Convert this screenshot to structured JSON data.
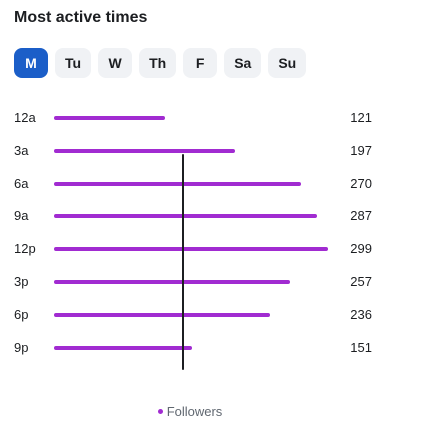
{
  "header": {
    "title": "Most active times"
  },
  "days": [
    {
      "label": "M",
      "active": true
    },
    {
      "label": "Tu",
      "active": false
    },
    {
      "label": "W",
      "active": false
    },
    {
      "label": "Th",
      "active": false
    },
    {
      "label": "F",
      "active": false
    },
    {
      "label": "Sa",
      "active": false
    },
    {
      "label": "Su",
      "active": false
    }
  ],
  "chart_data": {
    "type": "bar",
    "orientation": "horizontal",
    "categories": [
      "12a",
      "3a",
      "6a",
      "9a",
      "12p",
      "3p",
      "6p",
      "9p"
    ],
    "series": [
      {
        "name": "Followers",
        "values": [
          121,
          197,
          270,
          287,
          299,
          257,
          236,
          151
        ],
        "color": "#a12bd1"
      }
    ],
    "xlim": [
      0,
      299
    ],
    "grid": false,
    "legend_placement": "bottom"
  },
  "legend": {
    "label": "Followers"
  },
  "colors": {
    "accent": "#1b5ec8",
    "bar": "#a12bd1"
  }
}
